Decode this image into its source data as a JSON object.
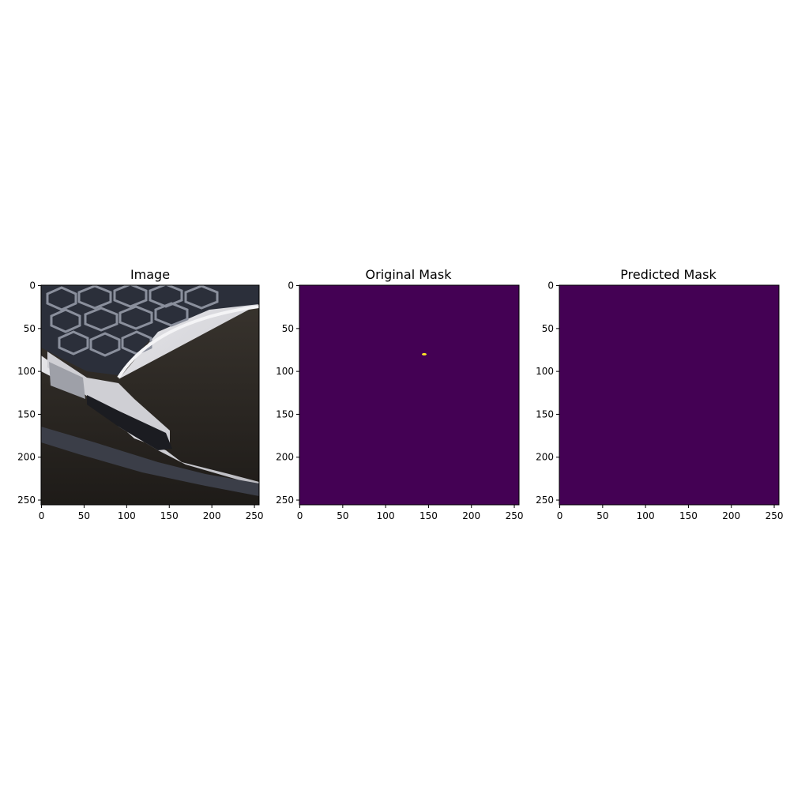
{
  "figure": {
    "background": "#ffffff",
    "panels": [
      {
        "title": "Image",
        "kind": "photo",
        "content": "car-front-bumper-photo",
        "x_ticks": [
          "0",
          "50",
          "100",
          "150",
          "200",
          "250"
        ],
        "y_ticks": [
          "0",
          "50",
          "100",
          "150",
          "200",
          "250"
        ]
      },
      {
        "title": "Original Mask",
        "kind": "mask",
        "fill_color": "#440154",
        "highlight_color": "#fde725",
        "mask_blobs": [
          {
            "x": 145,
            "y": 80
          }
        ],
        "x_ticks": [
          "0",
          "50",
          "100",
          "150",
          "200",
          "250"
        ],
        "y_ticks": [
          "0",
          "50",
          "100",
          "150",
          "200",
          "250"
        ]
      },
      {
        "title": "Predicted Mask",
        "kind": "mask",
        "fill_color": "#440154",
        "highlight_color": "#fde725",
        "mask_blobs": [],
        "x_ticks": [
          "0",
          "50",
          "100",
          "150",
          "200",
          "250"
        ],
        "y_ticks": [
          "0",
          "50",
          "100",
          "150",
          "200",
          "250"
        ]
      }
    ]
  }
}
